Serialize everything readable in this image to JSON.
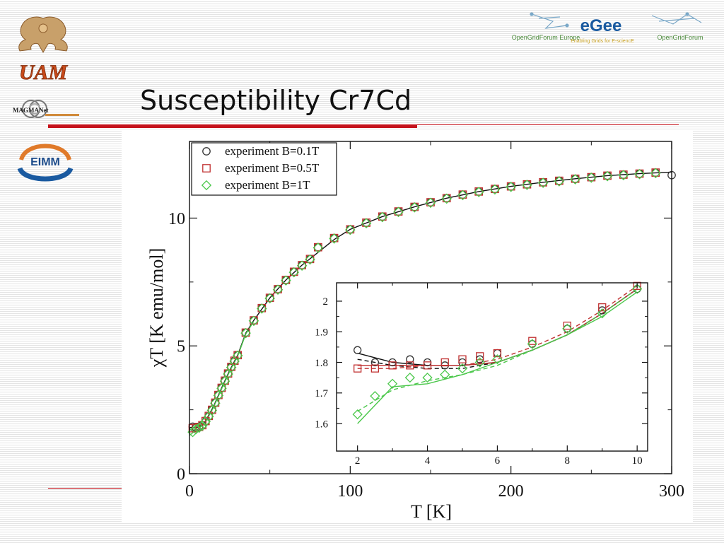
{
  "slide": {
    "title": "Susceptibility Cr7Cd"
  },
  "logos": {
    "uam_text": "UAM",
    "magmanet_text": "MAGMANet",
    "eimm_text": "EIMM",
    "ogf_europe_text": "OpenGridForum Europe",
    "egee_text": "eGee",
    "egee_subtitle": "Enabling Grids for E-sciencE",
    "ogf_text": "OpenGridForum"
  },
  "colors": {
    "accent_red": "#c5121b",
    "series_b01": "#333333",
    "series_b05": "#c03030",
    "series_b1": "#4cc84c"
  },
  "chart_data": [
    {
      "id": "main",
      "type": "scatter",
      "xlabel": "T [K]",
      "ylabel": "χT [K emu/mol]",
      "xlim": [
        0,
        300
      ],
      "ylim": [
        0,
        13.0
      ],
      "xticks": [
        {
          "v": 0,
          "label": "0"
        },
        {
          "v": 100,
          "label": "100"
        },
        {
          "v": 200,
          "label": "200"
        },
        {
          "v": 300,
          "label": "300"
        }
      ],
      "yticks": [
        {
          "v": 0,
          "label": "0"
        },
        {
          "v": 5,
          "label": "5"
        },
        {
          "v": 10,
          "label": "10"
        }
      ],
      "legend_position": "top-left",
      "series": [
        {
          "name": "experiment B=0.1T",
          "marker": "circle",
          "color": "#333333",
          "x": [
            2,
            4,
            6,
            8,
            10,
            12,
            14,
            16,
            18,
            20,
            22,
            24,
            26,
            28,
            30,
            35,
            40,
            45,
            50,
            55,
            60,
            65,
            70,
            75,
            80,
            90,
            100,
            110,
            120,
            130,
            140,
            150,
            160,
            170,
            180,
            190,
            200,
            210,
            220,
            230,
            240,
            250,
            260,
            270,
            280,
            290,
            300
          ],
          "y": [
            1.84,
            1.8,
            1.84,
            1.9,
            2.05,
            2.25,
            2.5,
            2.78,
            3.08,
            3.36,
            3.64,
            3.92,
            4.18,
            4.42,
            4.64,
            5.52,
            6.0,
            6.48,
            6.88,
            7.22,
            7.58,
            7.9,
            8.16,
            8.4,
            8.86,
            9.22,
            9.56,
            9.82,
            10.06,
            10.26,
            10.44,
            10.62,
            10.78,
            10.92,
            11.04,
            11.14,
            11.24,
            11.32,
            11.4,
            11.46,
            11.54,
            11.6,
            11.66,
            11.7,
            11.74,
            11.78,
            11.68
          ]
        },
        {
          "name": "experiment B=0.5T",
          "marker": "square",
          "color": "#c03030",
          "x": [
            2,
            4,
            6,
            8,
            10,
            12,
            14,
            16,
            18,
            20,
            22,
            24,
            26,
            28,
            30,
            35,
            40,
            45,
            50,
            55,
            60,
            65,
            70,
            75,
            80,
            90,
            100,
            110,
            120,
            130,
            140,
            150,
            160,
            170,
            180,
            190,
            200,
            210,
            220,
            230,
            240,
            250,
            260,
            270,
            280,
            290
          ],
          "y": [
            1.78,
            1.79,
            1.83,
            1.9,
            2.06,
            2.26,
            2.5,
            2.78,
            3.08,
            3.36,
            3.64,
            3.92,
            4.18,
            4.42,
            4.64,
            5.52,
            6.0,
            6.48,
            6.88,
            7.22,
            7.58,
            7.9,
            8.16,
            8.4,
            8.86,
            9.22,
            9.56,
            9.82,
            10.06,
            10.26,
            10.44,
            10.62,
            10.78,
            10.92,
            11.04,
            11.14,
            11.24,
            11.32,
            11.4,
            11.46,
            11.54,
            11.6,
            11.66,
            11.7,
            11.74,
            11.78
          ]
        },
        {
          "name": "experiment B=1T",
          "marker": "diamond",
          "color": "#4cc84c",
          "x": [
            2,
            4,
            6,
            8,
            10,
            12,
            14,
            16,
            18,
            20,
            22,
            24,
            26,
            28,
            30,
            35,
            40,
            45,
            50,
            55,
            60,
            65,
            70,
            75,
            80,
            90,
            100,
            110,
            120,
            130,
            140,
            150,
            160,
            170,
            180,
            190,
            200,
            210,
            220,
            230,
            240,
            250,
            260,
            270,
            280,
            290
          ],
          "y": [
            1.63,
            1.74,
            1.8,
            1.88,
            2.04,
            2.24,
            2.48,
            2.76,
            3.06,
            3.34,
            3.62,
            3.9,
            4.16,
            4.4,
            4.62,
            5.5,
            5.98,
            6.46,
            6.86,
            7.2,
            7.56,
            7.88,
            8.14,
            8.38,
            8.84,
            9.2,
            9.54,
            9.8,
            10.04,
            10.24,
            10.42,
            10.6,
            10.76,
            10.9,
            11.02,
            11.12,
            11.22,
            11.3,
            11.38,
            11.44,
            11.52,
            11.58,
            11.64,
            11.68,
            11.72,
            11.76
          ]
        }
      ],
      "curves": [
        {
          "label": "",
          "color": "#111111",
          "x": [
            0,
            2,
            4,
            6,
            8,
            10,
            15,
            20,
            25,
            30,
            35,
            40,
            50,
            60,
            70,
            80,
            90,
            100,
            120,
            140,
            160,
            180,
            200,
            220,
            240,
            260,
            280,
            300
          ],
          "y": [
            1.8,
            1.82,
            1.8,
            1.84,
            1.92,
            2.06,
            2.64,
            3.36,
            4.04,
            4.64,
            5.5,
            6.0,
            6.88,
            7.58,
            8.16,
            8.66,
            9.16,
            9.56,
            10.06,
            10.44,
            10.78,
            11.04,
            11.24,
            11.4,
            11.54,
            11.66,
            11.74,
            11.8
          ]
        },
        {
          "label": "",
          "color": "#4cc84c",
          "x": [
            0,
            2,
            4,
            6,
            8,
            10,
            15,
            20,
            25,
            30,
            35,
            40
          ],
          "y": [
            1.5,
            1.6,
            1.7,
            1.78,
            1.88,
            2.02,
            2.6,
            3.32,
            4.0,
            4.6,
            5.46,
            5.96
          ]
        }
      ]
    },
    {
      "id": "inset",
      "type": "scatter",
      "xlabel": "",
      "ylabel": "",
      "xlim": [
        1.4,
        10.3
      ],
      "ylim": [
        1.51,
        2.06
      ],
      "xticks": [
        {
          "v": 2,
          "label": "2"
        },
        {
          "v": 4,
          "label": "4"
        },
        {
          "v": 6,
          "label": "6"
        },
        {
          "v": 8,
          "label": "8"
        },
        {
          "v": 10,
          "label": "10"
        }
      ],
      "yticks": [
        {
          "v": 1.6,
          "label": "1.6"
        },
        {
          "v": 1.7,
          "label": "1.7"
        },
        {
          "v": 1.8,
          "label": "1.8"
        },
        {
          "v": 1.9,
          "label": "1.9"
        },
        {
          "v": 2.0,
          "label": "2"
        }
      ],
      "series": [
        {
          "name": "B=0.1T",
          "marker": "circle",
          "color": "#333333",
          "x": [
            2,
            2.5,
            3,
            3.5,
            4,
            4.5,
            5,
            5.5,
            6,
            7,
            8,
            9,
            10
          ],
          "y": [
            1.84,
            1.8,
            1.8,
            1.81,
            1.8,
            1.79,
            1.8,
            1.81,
            1.83,
            1.86,
            1.91,
            1.97,
            2.04
          ]
        },
        {
          "name": "B=0.5T",
          "marker": "square",
          "color": "#c03030",
          "x": [
            2,
            2.5,
            3,
            3.5,
            4,
            4.5,
            5,
            5.5,
            6,
            7,
            8,
            9,
            10
          ],
          "y": [
            1.78,
            1.78,
            1.79,
            1.79,
            1.79,
            1.8,
            1.81,
            1.82,
            1.83,
            1.87,
            1.92,
            1.98,
            2.05
          ]
        },
        {
          "name": "B=1T",
          "marker": "diamond",
          "color": "#4cc84c",
          "x": [
            2,
            2.5,
            3,
            3.5,
            4,
            4.5,
            5,
            5.5,
            6,
            7,
            8,
            9,
            10
          ],
          "y": [
            1.63,
            1.69,
            1.73,
            1.75,
            1.75,
            1.76,
            1.78,
            1.8,
            1.81,
            1.86,
            1.91,
            1.96,
            2.04
          ]
        }
      ],
      "curves": [
        {
          "label": "",
          "color": "#111111",
          "dash": false,
          "x": [
            2,
            3,
            4,
            5,
            6,
            7,
            8,
            9,
            10
          ],
          "y": [
            1.83,
            1.8,
            1.79,
            1.79,
            1.8,
            1.84,
            1.89,
            1.96,
            2.04
          ]
        },
        {
          "label": "",
          "color": "#111111",
          "dash": true,
          "x": [
            2,
            3,
            4,
            5,
            6,
            7,
            8,
            9,
            10
          ],
          "y": [
            1.81,
            1.79,
            1.78,
            1.78,
            1.8,
            1.84,
            1.89,
            1.96,
            2.04
          ]
        },
        {
          "label": "",
          "color": "#c03030",
          "dash": false,
          "x": [
            2,
            3,
            4,
            5,
            6,
            7,
            8,
            9,
            10
          ],
          "y": [
            1.79,
            1.79,
            1.79,
            1.79,
            1.8,
            1.84,
            1.89,
            1.96,
            2.04
          ]
        },
        {
          "label": "",
          "color": "#c03030",
          "dash": true,
          "x": [
            2,
            3,
            4,
            5,
            6,
            7,
            8,
            9,
            10
          ],
          "y": [
            1.78,
            1.78,
            1.79,
            1.79,
            1.81,
            1.85,
            1.9,
            1.97,
            2.05
          ]
        },
        {
          "label": "",
          "color": "#4cc84c",
          "dash": false,
          "x": [
            2,
            3,
            4,
            5,
            6,
            7,
            8,
            9,
            10
          ],
          "y": [
            1.6,
            1.72,
            1.73,
            1.76,
            1.8,
            1.84,
            1.89,
            1.95,
            2.03
          ]
        },
        {
          "label": "",
          "color": "#4cc84c",
          "dash": true,
          "x": [
            2,
            3,
            4,
            5,
            6,
            7,
            8,
            9,
            10
          ],
          "y": [
            1.64,
            1.71,
            1.74,
            1.76,
            1.79,
            1.84,
            1.89,
            1.96,
            2.04
          ]
        }
      ]
    }
  ]
}
